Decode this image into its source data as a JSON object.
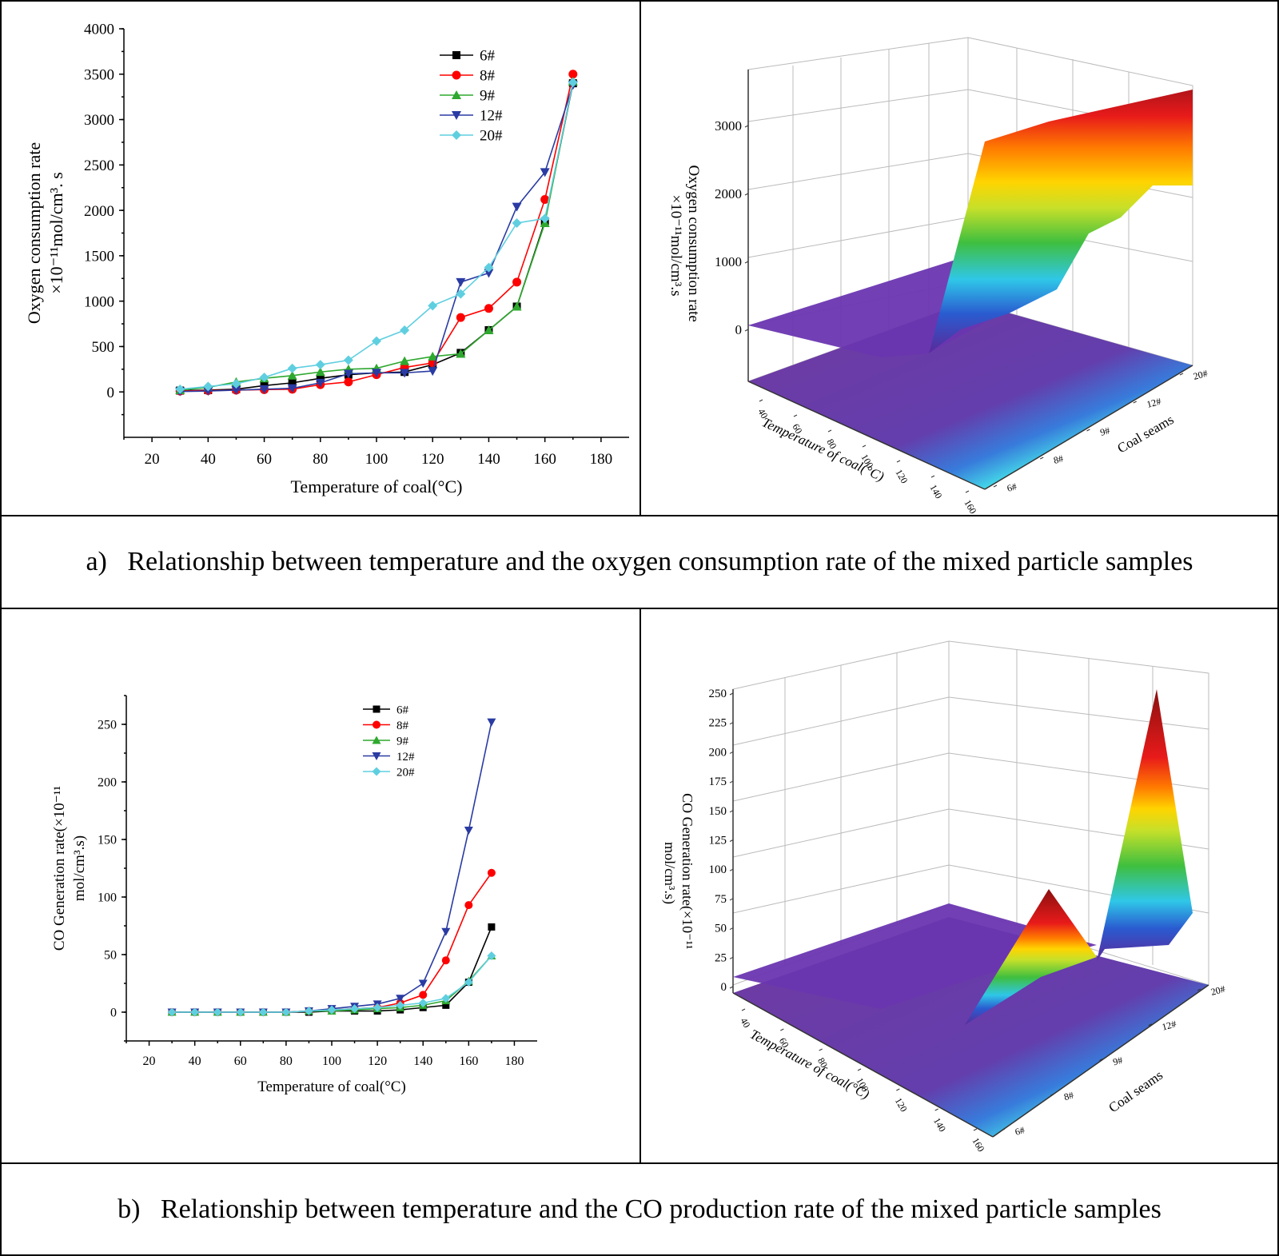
{
  "captions": {
    "a": "a)   Relationship between temperature and the oxygen consumption rate of the mixed particle samples",
    "b": "b)   Relationship between temperature and the CO production rate of the mixed particle samples"
  },
  "colors": {
    "6#": "#000000",
    "8#": "#ff0000",
    "9#": "#2ea82e",
    "12#": "#2a3ba3",
    "20#": "#5fcfe0"
  },
  "chart_data": [
    {
      "type": "line",
      "xlabel": "Temperature of coal(°C)",
      "ylabel_line1": "Oxygen consumption rate",
      "ylabel_line2": "×10⁻¹¹mol/cm³. s",
      "xlim": [
        10,
        190
      ],
      "ylim": [
        -500,
        4000
      ],
      "xticks": [
        20,
        40,
        60,
        80,
        100,
        120,
        140,
        160,
        180
      ],
      "yticks": [
        0,
        500,
        1000,
        1500,
        2000,
        2500,
        3000,
        3500,
        4000
      ],
      "x": [
        30,
        40,
        50,
        60,
        70,
        80,
        90,
        100,
        110,
        120,
        130,
        140,
        150,
        160,
        170
      ],
      "series": [
        {
          "name": "6#",
          "marker": "square",
          "values": [
            15,
            20,
            30,
            70,
            100,
            150,
            190,
            210,
            220,
            300,
            430,
            680,
            940,
            1880,
            3400
          ]
        },
        {
          "name": "8#",
          "marker": "circle",
          "values": [
            10,
            15,
            20,
            25,
            30,
            80,
            110,
            190,
            270,
            320,
            820,
            920,
            1210,
            2120,
            3500
          ]
        },
        {
          "name": "9#",
          "marker": "triangle-up",
          "values": [
            20,
            50,
            110,
            150,
            180,
            220,
            250,
            260,
            340,
            390,
            420,
            680,
            940,
            1860,
            3420
          ]
        },
        {
          "name": "12#",
          "marker": "triangle-down",
          "values": [
            5,
            10,
            20,
            30,
            40,
            100,
            200,
            210,
            210,
            230,
            1210,
            1310,
            2040,
            2420,
            3380
          ]
        },
        {
          "name": "20#",
          "marker": "diamond",
          "values": [
            30,
            60,
            90,
            160,
            260,
            300,
            350,
            560,
            680,
            950,
            1080,
            1370,
            1860,
            1910,
            3410
          ]
        }
      ]
    },
    {
      "type": "surface3d",
      "zlabel_line1": "Oxygen consumption rate",
      "zlabel_line2": "×10⁻¹¹mol/cm³.s",
      "zticks": [
        "0",
        "1000",
        "2000",
        "3000"
      ],
      "xlabel": "Temperature of coal(°C)",
      "xticks": [
        "40",
        "60",
        "80",
        "100",
        "120",
        "140",
        "160"
      ],
      "ylabel": "Coal seams",
      "yticks": [
        "6#",
        "8#",
        "9#",
        "12#",
        "20#"
      ]
    },
    {
      "type": "line",
      "xlabel": "Temperature of coal(°C)",
      "ylabel_line1": "CO Generation rate(×10⁻¹¹",
      "ylabel_line2": "mol/cm³.s)",
      "xlim": [
        10,
        190
      ],
      "ylim": [
        -25,
        275
      ],
      "xticks": [
        20,
        40,
        60,
        80,
        100,
        120,
        140,
        160,
        180
      ],
      "yticks": [
        0,
        50,
        100,
        150,
        200,
        250
      ],
      "x": [
        30,
        40,
        50,
        60,
        70,
        80,
        90,
        100,
        110,
        120,
        130,
        140,
        150,
        160,
        170
      ],
      "series": [
        {
          "name": "6#",
          "marker": "square",
          "values": [
            0,
            0,
            0,
            0,
            0,
            0,
            0,
            1,
            1,
            1,
            2,
            4,
            6,
            26,
            74
          ]
        },
        {
          "name": "8#",
          "marker": "circle",
          "values": [
            0,
            0,
            0,
            0,
            0,
            0,
            1,
            2,
            3,
            4,
            8,
            15,
            45,
            93,
            121
          ]
        },
        {
          "name": "9#",
          "marker": "triangle-up",
          "values": [
            0,
            0,
            0,
            0,
            0,
            0,
            1,
            1,
            2,
            3,
            4,
            6,
            10,
            27,
            49
          ]
        },
        {
          "name": "12#",
          "marker": "triangle-down",
          "values": [
            0,
            0,
            0,
            0,
            0,
            0,
            1,
            3,
            5,
            7,
            12,
            25,
            70,
            158,
            252
          ]
        },
        {
          "name": "20#",
          "marker": "diamond",
          "values": [
            0,
            0,
            0,
            0,
            0,
            0,
            1,
            2,
            3,
            4,
            6,
            8,
            12,
            26,
            49
          ]
        }
      ]
    },
    {
      "type": "surface3d",
      "zlabel_line1": "CO Generation rate(×10⁻¹¹",
      "zlabel_line2": "mol/cm³.s)",
      "zticks": [
        "0",
        "25",
        "50",
        "75",
        "100",
        "125",
        "150",
        "175",
        "200",
        "225",
        "250"
      ],
      "xlabel": "Temperature of coal(°C)",
      "xticks": [
        "40",
        "60",
        "80",
        "100",
        "120",
        "140",
        "160"
      ],
      "ylabel": "Coal seams",
      "yticks": [
        "6#",
        "8#",
        "9#",
        "12#",
        "20#"
      ]
    }
  ]
}
